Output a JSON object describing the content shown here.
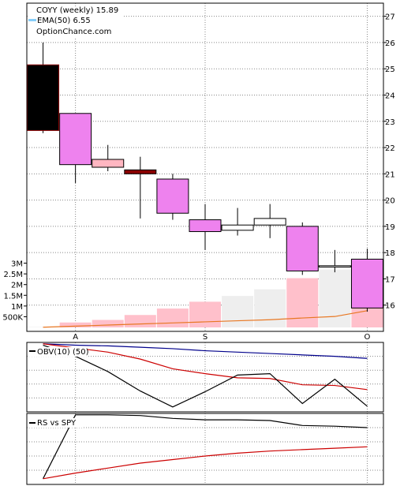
{
  "header": {
    "line1": "COYY (weekly) 15.89",
    "line2": "EMA(50) 6.55",
    "line3": "OptionChance.com"
  },
  "colors": {
    "up": "#ee82ee",
    "down_black": "#000000",
    "pink": "#ffb6c1",
    "dark_red": "#8b0000",
    "neutral": "#ffffff",
    "volume_up": "#ffc0cb",
    "volume_down": "#eeeeee",
    "volume_ema": "#e87722",
    "ema_legend": "#87cefa",
    "obv_blue": "#00008b",
    "obv_red": "#cc0000",
    "line_black": "#000000",
    "grid": "#888888"
  },
  "chart_data": [
    {
      "type": "candlestick",
      "title": "COYY (weekly) 15.89",
      "legend": [
        "EMA(50) 6.55"
      ],
      "ylim": [
        15,
        27.5
      ],
      "yticks": [
        16,
        17,
        18,
        19,
        20,
        21,
        22,
        23,
        24,
        25,
        26,
        27
      ],
      "xticks": [
        {
          "label": "A",
          "index": 1
        },
        {
          "label": "S",
          "index": 5
        },
        {
          "label": "O",
          "index": 10
        }
      ],
      "candles": [
        {
          "o": 22.65,
          "h": 26.0,
          "l": 22.55,
          "c": 25.15,
          "fill": "down_black",
          "border": "dark_red"
        },
        {
          "o": 23.3,
          "h": 23.3,
          "l": 20.65,
          "c": 21.35,
          "fill": "up"
        },
        {
          "o": 21.55,
          "h": 22.1,
          "l": 21.1,
          "c": 21.25,
          "fill": "pink"
        },
        {
          "o": 21.15,
          "h": 21.65,
          "l": 19.3,
          "c": 21.0,
          "fill": "dark_red"
        },
        {
          "o": 20.8,
          "h": 21.0,
          "l": 19.25,
          "c": 19.5,
          "fill": "up"
        },
        {
          "o": 19.25,
          "h": 19.85,
          "l": 18.1,
          "c": 18.8,
          "fill": "up"
        },
        {
          "o": 19.05,
          "h": 19.7,
          "l": 18.65,
          "c": 18.85,
          "fill": "neutral"
        },
        {
          "o": 19.3,
          "h": 19.85,
          "l": 18.55,
          "c": 19.05,
          "fill": "neutral"
        },
        {
          "o": 19.0,
          "h": 19.15,
          "l": 17.15,
          "c": 17.3,
          "fill": "up"
        },
        {
          "o": 17.5,
          "h": 18.1,
          "l": 17.25,
          "c": 17.45,
          "fill": "neutral"
        },
        {
          "o": 17.75,
          "h": 18.15,
          "l": 15.75,
          "c": 15.89,
          "fill": "up"
        }
      ]
    },
    {
      "type": "bar",
      "title": "",
      "ylim": [
        0,
        3500000
      ],
      "yticks": [
        {
          "label": "3M",
          "value": 3000000
        },
        {
          "label": "2.5M",
          "value": 2500000
        },
        {
          "label": "2M",
          "value": 2000000
        },
        {
          "label": "1.5M",
          "value": 1500000
        },
        {
          "label": "1M",
          "value": 1000000
        },
        {
          "label": "500K",
          "value": 500000
        }
      ],
      "values": [
        20000,
        230000,
        350000,
        580000,
        880000,
        1200000,
        1470000,
        1780000,
        2300000,
        2700000,
        3000000
      ],
      "colors": [
        "volume_down",
        "volume_up",
        "volume_up",
        "volume_up",
        "volume_up",
        "volume_up",
        "volume_down",
        "volume_down",
        "volume_up",
        "volume_down",
        "volume_up"
      ],
      "ema": [
        10000,
        60000,
        110000,
        160000,
        210000,
        260000,
        310000,
        360000,
        440000,
        510000,
        780000
      ]
    },
    {
      "type": "line",
      "title": "OBV(10) (50)",
      "ylim": [
        0,
        100
      ],
      "series": [
        {
          "values": [
            98,
            96,
            95,
            93,
            91,
            88,
            86,
            84,
            82,
            80,
            77
          ],
          "color": "obv_blue"
        },
        {
          "values": [
            98,
            92,
            86,
            76,
            62,
            55,
            49,
            48,
            39,
            38,
            32
          ],
          "color": "obv_red"
        },
        {
          "values": [
            96,
            80,
            58,
            30,
            7,
            29,
            53,
            55,
            12,
            47,
            8
          ],
          "color": "line_black"
        }
      ]
    },
    {
      "type": "line",
      "title": "RS vs SPY",
      "ylim": [
        0,
        100
      ],
      "series": [
        {
          "values": [
            8,
            98,
            98,
            97,
            93,
            91,
            91,
            90,
            83,
            82,
            80
          ],
          "color": "line_black"
        },
        {
          "values": [
            8,
            16,
            23,
            30,
            35,
            40,
            44,
            47,
            49,
            51,
            53
          ],
          "color": "obv_red"
        }
      ]
    }
  ]
}
